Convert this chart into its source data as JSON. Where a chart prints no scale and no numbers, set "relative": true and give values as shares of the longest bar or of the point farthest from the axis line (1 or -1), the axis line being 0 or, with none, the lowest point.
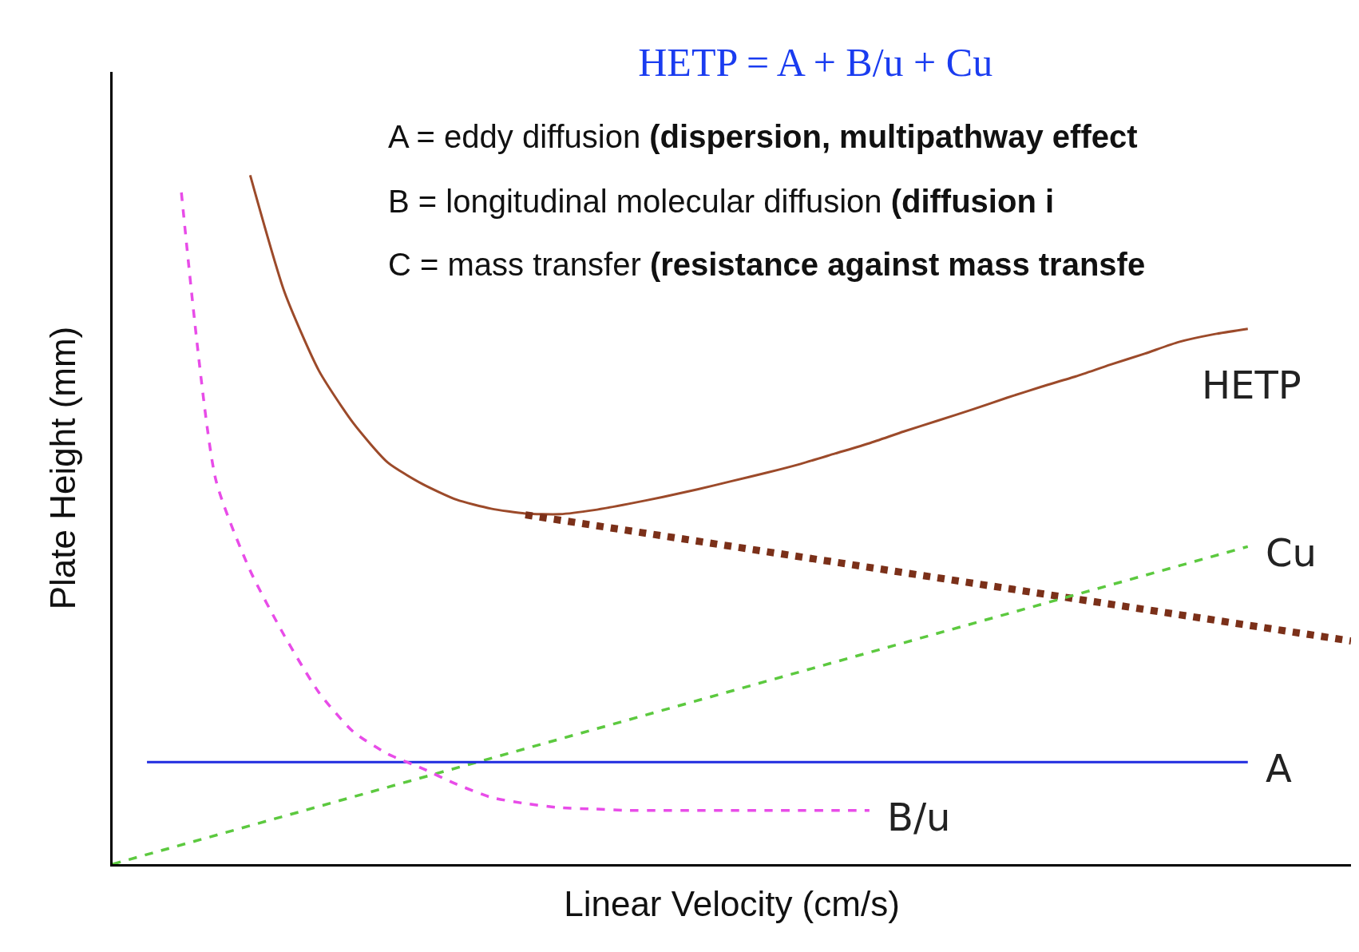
{
  "chart_data": {
    "type": "line",
    "relative": true,
    "title": "HETP = A + B/u + Cu",
    "xlabel": "Linear Velocity (cm/s)",
    "ylabel": "Plate Height (mm)",
    "annotations": [
      "A = eddy diffusion",
      "(dispersion, multipathway effect",
      "B = longitudinal molecular diffusion",
      "(diffusion i",
      "C = mass transfer",
      "(resistance against mass transfe"
    ],
    "categories": [
      null,
      null,
      null,
      null,
      null,
      null,
      null,
      null,
      null,
      null,
      null,
      null,
      null,
      null,
      null,
      null,
      null,
      null,
      null,
      null,
      null,
      null,
      null,
      null,
      null,
      null,
      null,
      null,
      null,
      null,
      null,
      null,
      null,
      null,
      null,
      null,
      null
    ],
    "legend": false,
    "series": [
      {
        "name": "HETP",
        "color": "#9c4a2a",
        "line_style": "solid",
        "values": [
          null,
          null,
          null,
          null,
          1.0,
          0.83,
          0.716,
          0.64,
          0.583,
          0.552,
          0.529,
          0.516,
          0.509,
          0.508,
          0.514,
          0.523,
          0.533,
          0.544,
          0.556,
          0.568,
          0.581,
          0.596,
          0.611,
          0.628,
          0.644,
          0.66,
          0.677,
          0.693,
          0.708,
          0.725,
          0.741,
          0.758,
          0.769,
          0.777,
          null,
          null,
          null
        ]
      },
      {
        "color": "#7b3019",
        "line_style": "dotted",
        "values": [
          null,
          null,
          null,
          null,
          null,
          null,
          null,
          null,
          null,
          null,
          null,
          null,
          0.507,
          null,
          null,
          null,
          null,
          null,
          null,
          null,
          null,
          null,
          null,
          null,
          null,
          null,
          null,
          null,
          null,
          null,
          null,
          null,
          null,
          null,
          null,
          null,
          0.324
        ]
      },
      {
        "name": "Cu",
        "color": "#5cc93f",
        "line_style": "dashed",
        "values": [
          0,
          null,
          null,
          null,
          null,
          null,
          null,
          null,
          null,
          null,
          null,
          null,
          null,
          null,
          null,
          null,
          null,
          null,
          null,
          null,
          null,
          null,
          null,
          null,
          null,
          null,
          null,
          null,
          null,
          null,
          null,
          null,
          null,
          0.461,
          null,
          null,
          null
        ]
      },
      {
        "name": "A",
        "color": "#1f2be0",
        "line_style": "solid",
        "values": [
          null,
          0.148,
          null,
          null,
          null,
          null,
          null,
          null,
          null,
          null,
          null,
          null,
          null,
          null,
          null,
          null,
          null,
          null,
          null,
          null,
          null,
          null,
          null,
          null,
          null,
          null,
          null,
          null,
          null,
          null,
          null,
          null,
          null,
          0.148,
          null,
          null,
          null
        ]
      },
      {
        "name": "B/u",
        "color": "#e84ce8",
        "line_style": "dashed",
        "values": [
          null,
          null,
          0.975,
          0.558,
          0.426,
          0.331,
          0.249,
          0.192,
          0.16,
          0.139,
          0.116,
          0.097,
          0.088,
          0.082,
          0.08,
          0.078,
          0.078,
          0.078,
          0.078,
          0.078,
          0.078,
          0.078,
          0.078,
          null,
          null,
          null,
          null,
          null,
          null,
          null,
          null,
          null,
          null,
          null,
          null,
          null,
          null
        ]
      }
    ]
  }
}
